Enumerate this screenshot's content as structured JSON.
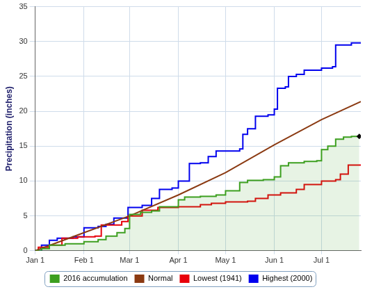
{
  "chart_data": {
    "type": "line",
    "y_label": "Precipitation (inches)",
    "xlim": [
      0,
      207
    ],
    "xticks": [
      {
        "value": 0,
        "label": "Jan 1"
      },
      {
        "value": 31,
        "label": "Feb 1"
      },
      {
        "value": 60,
        "label": "Mar 1"
      },
      {
        "value": 91,
        "label": "Apr 1"
      },
      {
        "value": 121,
        "label": "May 1"
      },
      {
        "value": 152,
        "label": "Jun 1"
      },
      {
        "value": 182,
        "label": "Jul 1"
      }
    ],
    "ylim": [
      0,
      35
    ],
    "yticks": [
      0,
      5,
      10,
      15,
      20,
      25,
      30,
      35
    ],
    "grid": true,
    "legend": "bottom",
    "series": [
      {
        "name": "2016 accumulation",
        "color": "#3c9f1f",
        "type": "area",
        "line_style": "step",
        "marker": "diamond",
        "x": [
          0,
          4,
          9,
          19,
          31,
          40,
          45,
          52,
          57,
          60,
          67,
          74,
          79,
          91,
          95,
          105,
          115,
          121,
          125,
          130,
          135,
          145,
          152,
          156,
          161,
          171,
          179,
          182,
          186,
          191,
          196,
          201,
          206
        ],
        "values": [
          0,
          0.3,
          0.8,
          1.0,
          1.3,
          1.6,
          2.1,
          2.6,
          3.2,
          5.2,
          5.5,
          5.7,
          6.3,
          7.3,
          7.7,
          7.8,
          8.0,
          8.6,
          8.6,
          9.8,
          10.1,
          10.2,
          10.6,
          12.2,
          12.6,
          12.8,
          12.9,
          14.5,
          15.0,
          16.0,
          16.3,
          16.4,
          16.4
        ]
      },
      {
        "name": "Normal",
        "color": "#8b3a12",
        "type": "line",
        "line_style": "solid",
        "x": [
          0,
          31,
          60,
          91,
          121,
          152,
          182,
          207
        ],
        "values": [
          0,
          2.6,
          5.0,
          8.0,
          11.2,
          15.2,
          18.8,
          21.4
        ]
      },
      {
        "name": "Lowest (1941)",
        "color": "#e8000b",
        "type": "line",
        "line_style": "step",
        "x": [
          0,
          2,
          9,
          17,
          27,
          38,
          42,
          55,
          59,
          68,
          78,
          91,
          105,
          112,
          121,
          135,
          140,
          148,
          156,
          166,
          171,
          182,
          191,
          194,
          199,
          207
        ],
        "values": [
          0,
          0.5,
          0.8,
          1.8,
          2.0,
          2.1,
          3.7,
          4.2,
          5.0,
          5.8,
          6.2,
          6.3,
          6.6,
          6.8,
          7.0,
          7.1,
          7.5,
          8.0,
          8.3,
          8.8,
          9.5,
          10.0,
          10.2,
          11.0,
          12.3,
          12.3
        ]
      },
      {
        "name": "Highest (2000)",
        "color": "#0000ee",
        "type": "line",
        "line_style": "step",
        "x": [
          0,
          4,
          9,
          14,
          24,
          31,
          40,
          45,
          50,
          59,
          68,
          74,
          79,
          87,
          91,
          98,
          105,
          110,
          115,
          121,
          130,
          132,
          135,
          140,
          148,
          152,
          154,
          159,
          161,
          166,
          171,
          182,
          189,
          191,
          201,
          207
        ],
        "values": [
          0,
          0.8,
          1.5,
          1.8,
          2.0,
          3.3,
          3.5,
          3.8,
          4.7,
          6.2,
          6.5,
          7.5,
          8.8,
          9.0,
          10.0,
          12.5,
          12.6,
          13.5,
          14.3,
          14.3,
          14.6,
          16.7,
          17.5,
          19.3,
          19.5,
          20.3,
          23.3,
          23.5,
          25.0,
          25.3,
          25.9,
          26.2,
          26.4,
          29.5,
          29.8,
          29.8
        ]
      }
    ]
  }
}
